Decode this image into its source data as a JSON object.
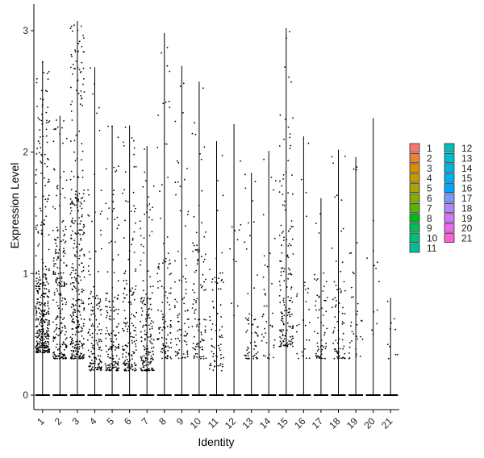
{
  "chart_data": {
    "type": "violin",
    "xlabel": "Identity",
    "ylabel": "Expression Level",
    "ylim": [
      -0.15,
      3.1
    ],
    "yticks": [
      0,
      1,
      2,
      3
    ],
    "grid": false,
    "legend_position": "right",
    "categories": [
      "1",
      "2",
      "3",
      "4",
      "5",
      "6",
      "7",
      "8",
      "9",
      "10",
      "11",
      "12",
      "13",
      "14",
      "15",
      "16",
      "17",
      "18",
      "19",
      "20",
      "21"
    ],
    "colors": [
      "#F8766D",
      "#EB8335",
      "#DA8E00",
      "#C49A00",
      "#A9A400",
      "#89AC00",
      "#5DB300",
      "#00B81F",
      "#00BC59",
      "#00BE7D",
      "#00C09B",
      "#00C0B5",
      "#00BDCD",
      "#00B7E2",
      "#00B0F3",
      "#00A6FF",
      "#7C98FF",
      "#B186FF",
      "#D575FE",
      "#ED68ED",
      "#FB61D7"
    ],
    "max_values": [
      2.75,
      2.3,
      3.08,
      2.7,
      2.22,
      2.22,
      2.05,
      2.98,
      2.71,
      2.58,
      2.09,
      2.23,
      1.83,
      2.01,
      3.02,
      2.13,
      1.62,
      2.02,
      1.96,
      2.28,
      0.8
    ],
    "dense_range": [
      [
        0.35,
        1.5
      ],
      [
        0.3,
        2.1
      ],
      [
        0.3,
        2.6
      ],
      [
        0.2,
        1.3
      ],
      [
        0.2,
        1.2
      ],
      [
        0.2,
        1.6
      ],
      [
        0.2,
        1.3
      ],
      [
        0.3,
        1.7
      ],
      [
        0.3,
        1.6
      ],
      [
        0.3,
        1.9
      ],
      [
        0.2,
        1.6
      ],
      [
        0.6,
        2.0
      ],
      [
        0.3,
        0.9
      ],
      [
        0.3,
        1.8
      ],
      [
        0.4,
        2.2
      ],
      [
        0.3,
        1.5
      ],
      [
        0.3,
        1.5
      ],
      [
        0.3,
        1.4
      ],
      [
        0.3,
        1.3
      ],
      [
        0.5,
        2.0
      ],
      [
        0.3,
        0.8
      ]
    ],
    "point_counts": [
      380,
      230,
      340,
      150,
      150,
      160,
      170,
      110,
      80,
      100,
      70,
      12,
      60,
      40,
      160,
      28,
      60,
      70,
      35,
      12,
      10
    ]
  }
}
